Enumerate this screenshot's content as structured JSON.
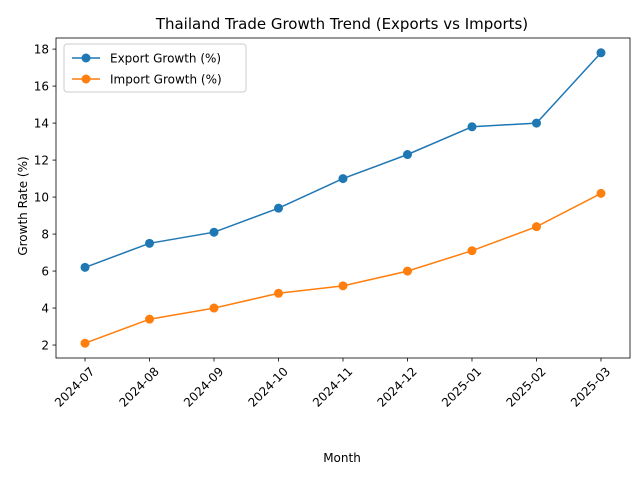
{
  "chart_data": {
    "type": "line",
    "title": "Thailand Trade Growth Trend (Exports vs Imports)",
    "xlabel": "Month",
    "ylabel": "Growth Rate (%)",
    "categories": [
      "2024-07",
      "2024-08",
      "2024-09",
      "2024-10",
      "2024-11",
      "2024-12",
      "2025-01",
      "2025-02",
      "2025-03"
    ],
    "series": [
      {
        "name": "Export Growth (%)",
        "color": "#1f77b4",
        "values": [
          6.2,
          7.5,
          8.1,
          9.4,
          11.0,
          12.3,
          13.8,
          14.0,
          17.8
        ]
      },
      {
        "name": "Import Growth (%)",
        "color": "#ff7f0e",
        "values": [
          2.1,
          3.4,
          4.0,
          4.8,
          5.2,
          6.0,
          7.1,
          8.4,
          10.2
        ]
      }
    ],
    "yticks": [
      2,
      4,
      6,
      8,
      10,
      12,
      14,
      16,
      18
    ],
    "ylim": [
      1.3,
      18.6
    ],
    "grid": false,
    "legend_position": "upper-left"
  }
}
